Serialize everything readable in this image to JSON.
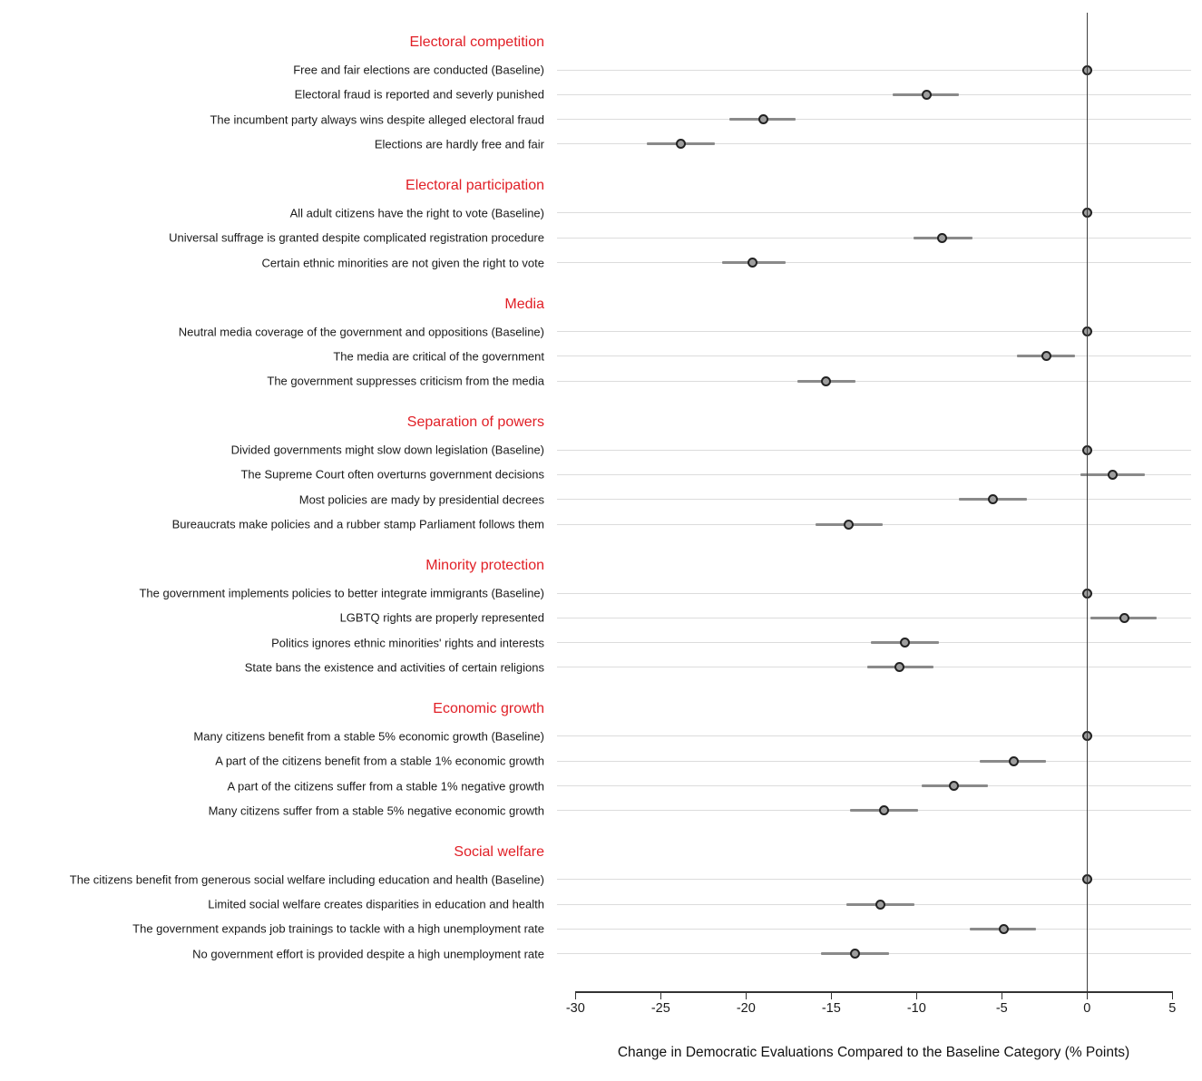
{
  "colors": {
    "section_header": "#e11f26",
    "point_fill": "#9e9e9e",
    "point_border": "#222222",
    "ci_line": "#8a8a8a",
    "gridline": "#dcdcdc",
    "zero_line": "#404040",
    "axis": "#333333"
  },
  "chart_data": {
    "type": "scatter",
    "subtype": "coefficient-dot-whisker-plot",
    "xlabel": "Change in Democratic Evaluations Compared to the Baseline Category (% Points)",
    "x_ticks": [
      -30,
      -25,
      -20,
      -15,
      -10,
      -5,
      0,
      5
    ],
    "xlim": [
      -31,
      6.1
    ],
    "zero_reference_line": 0,
    "grid": "light horizontal gridline per row",
    "legend": "none",
    "sections": [
      {
        "header": "Electoral competition",
        "items": [
          {
            "label": "Free and fair elections are conducted (Baseline)",
            "estimate": 0,
            "ci": [
              0,
              0
            ],
            "baseline": true
          },
          {
            "label": "Electoral fraud is reported and severly punished",
            "estimate": -9.4,
            "ci": [
              -11.4,
              -7.5
            ],
            "baseline": false
          },
          {
            "label": "The incumbent party always wins despite alleged electoral fraud",
            "estimate": -19.0,
            "ci": [
              -21.0,
              -17.1
            ],
            "baseline": false
          },
          {
            "label": "Elections are hardly free and fair",
            "estimate": -23.8,
            "ci": [
              -25.8,
              -21.8
            ],
            "baseline": false
          }
        ]
      },
      {
        "header": "Electoral participation",
        "items": [
          {
            "label": "All adult citizens have the right to vote (Baseline)",
            "estimate": 0,
            "ci": [
              0,
              0
            ],
            "baseline": true
          },
          {
            "label": "Universal suffrage is granted despite complicated registration procedure",
            "estimate": -8.5,
            "ci": [
              -10.2,
              -6.7
            ],
            "baseline": false
          },
          {
            "label": "Certain ethnic minorities are not given the right to vote",
            "estimate": -19.6,
            "ci": [
              -21.4,
              -17.7
            ],
            "baseline": false
          }
        ]
      },
      {
        "header": "Media",
        "items": [
          {
            "label": "Neutral media coverage of the government and oppositions (Baseline)",
            "estimate": 0,
            "ci": [
              0,
              0
            ],
            "baseline": true
          },
          {
            "label": "The media are critical of the government",
            "estimate": -2.4,
            "ci": [
              -4.1,
              -0.7
            ],
            "baseline": false
          },
          {
            "label": "The government suppresses criticism from the media",
            "estimate": -15.3,
            "ci": [
              -17.0,
              -13.6
            ],
            "baseline": false
          }
        ]
      },
      {
        "header": "Separation of powers",
        "items": [
          {
            "label": "Divided governments might slow down legislation (Baseline)",
            "estimate": 0,
            "ci": [
              0,
              0
            ],
            "baseline": true
          },
          {
            "label": "The Supreme Court often overturns government decisions",
            "estimate": 1.5,
            "ci": [
              -0.4,
              3.4
            ],
            "baseline": false
          },
          {
            "label": "Most policies are mady by presidential decrees",
            "estimate": -5.5,
            "ci": [
              -7.5,
              -3.5
            ],
            "baseline": false
          },
          {
            "label": "Bureaucrats make policies and a rubber stamp Parliament follows them",
            "estimate": -14.0,
            "ci": [
              -15.9,
              -12.0
            ],
            "baseline": false
          }
        ]
      },
      {
        "header": "Minority protection",
        "items": [
          {
            "label": "The government implements policies to better integrate immigrants (Baseline)",
            "estimate": 0,
            "ci": [
              0,
              0
            ],
            "baseline": true
          },
          {
            "label": "LGBTQ rights are properly represented",
            "estimate": 2.2,
            "ci": [
              0.2,
              4.1
            ],
            "baseline": false
          },
          {
            "label": "Politics ignores ethnic minorities' rights and interests",
            "estimate": -10.7,
            "ci": [
              -12.7,
              -8.7
            ],
            "baseline": false
          },
          {
            "label": "State bans the existence and activities of certain religions",
            "estimate": -11.0,
            "ci": [
              -12.9,
              -9.0
            ],
            "baseline": false
          }
        ]
      },
      {
        "header": "Economic growth",
        "items": [
          {
            "label": "Many citizens benefit from a stable 5% economic growth (Baseline)",
            "estimate": 0,
            "ci": [
              0,
              0
            ],
            "baseline": true
          },
          {
            "label": "A part of the citizens benefit from a stable 1% economic growth",
            "estimate": -4.3,
            "ci": [
              -6.3,
              -2.4
            ],
            "baseline": false
          },
          {
            "label": "A part of the citizens suffer from a stable 1% negative growth",
            "estimate": -7.8,
            "ci": [
              -9.7,
              -5.8
            ],
            "baseline": false
          },
          {
            "label": "Many citizens suffer from a stable 5% negative economic growth",
            "estimate": -11.9,
            "ci": [
              -13.9,
              -9.9
            ],
            "baseline": false
          }
        ]
      },
      {
        "header": "Social welfare",
        "items": [
          {
            "label": "The citizens benefit from generous social welfare including education and health (Baseline)",
            "estimate": 0,
            "ci": [
              0,
              0
            ],
            "baseline": true
          },
          {
            "label": "Limited social welfare creates disparities in education and health",
            "estimate": -12.1,
            "ci": [
              -14.1,
              -10.1
            ],
            "baseline": false
          },
          {
            "label": "The government expands job trainings to tackle with a high unemployment rate",
            "estimate": -4.9,
            "ci": [
              -6.9,
              -3.0
            ],
            "baseline": false
          },
          {
            "label": "No government effort is provided despite a high unemployment rate",
            "estimate": -13.6,
            "ci": [
              -15.6,
              -11.6
            ],
            "baseline": false
          }
        ]
      }
    ]
  }
}
